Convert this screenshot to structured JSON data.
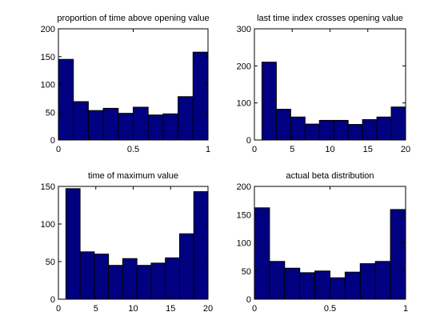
{
  "chart_data": [
    {
      "type": "histogram",
      "title": "proportion of time above opening value",
      "color": "#000080",
      "bins": [
        0,
        0.1,
        0.2,
        0.3,
        0.4,
        0.5,
        0.6,
        0.7,
        0.8,
        0.9,
        1
      ],
      "values": [
        145,
        69,
        53,
        57,
        48,
        59,
        45,
        47,
        78,
        158
      ],
      "xlim": [
        0,
        1
      ],
      "xticks": [
        0,
        0.5,
        1
      ],
      "ylim": [
        0,
        200
      ],
      "yticks": [
        0,
        50,
        100,
        150,
        200
      ]
    },
    {
      "type": "histogram",
      "title": "last time index crosses opening value",
      "color": "#000080",
      "bins": [
        1,
        2.9,
        4.8,
        6.7,
        8.6,
        10.5,
        12.4,
        14.3,
        16.2,
        18.1,
        20
      ],
      "values": [
        210,
        83,
        62,
        43,
        53,
        53,
        42,
        55,
        62,
        89
      ],
      "xlim": [
        0,
        20
      ],
      "xticks": [
        0,
        5,
        10,
        15,
        20
      ],
      "ylim": [
        0,
        300
      ],
      "yticks": [
        0,
        100,
        200,
        300
      ]
    },
    {
      "type": "histogram",
      "title": "time of maximum value",
      "color": "#000080",
      "bins": [
        1,
        2.9,
        4.8,
        6.7,
        8.6,
        10.5,
        12.4,
        14.3,
        16.2,
        18.1,
        20
      ],
      "values": [
        147,
        63,
        60,
        45,
        54,
        45,
        48,
        55,
        87,
        143
      ],
      "xlim": [
        0,
        20
      ],
      "xticks": [
        0,
        5,
        10,
        15,
        20
      ],
      "ylim": [
        0,
        150
      ],
      "yticks": [
        0,
        50,
        100,
        150
      ]
    },
    {
      "type": "histogram",
      "title": "actual beta distribution",
      "color": "#000080",
      "bins": [
        0,
        0.1,
        0.2,
        0.3,
        0.4,
        0.5,
        0.6,
        0.7,
        0.8,
        0.9,
        1
      ],
      "values": [
        162,
        67,
        55,
        47,
        50,
        38,
        48,
        63,
        67,
        159
      ],
      "xlim": [
        0,
        1
      ],
      "xticks": [
        0,
        0.5,
        1
      ],
      "ylim": [
        0,
        200
      ],
      "yticks": [
        0,
        50,
        100,
        150,
        200
      ]
    }
  ]
}
